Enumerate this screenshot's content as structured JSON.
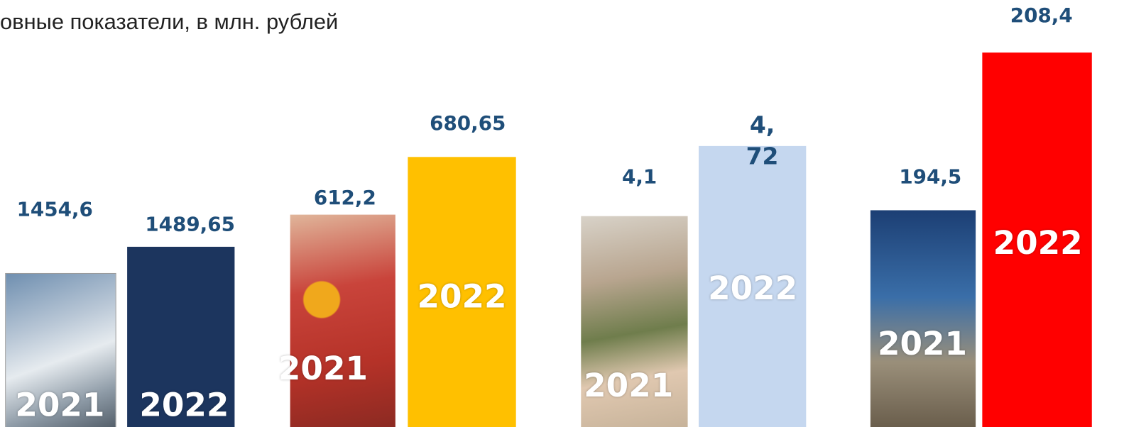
{
  "title": "овные показатели, в млн. рублей",
  "groups": [
    {
      "bars": [
        {
          "year": "2021",
          "value": "1454,6"
        },
        {
          "year": "2022",
          "value": "1489,65"
        }
      ]
    },
    {
      "bars": [
        {
          "year": "2021",
          "value": "612,2"
        },
        {
          "year": "2022",
          "value": "680,65"
        }
      ]
    },
    {
      "bars": [
        {
          "year": "2021",
          "value": "4,1"
        },
        {
          "year": "2022",
          "value": "4,72"
        }
      ]
    },
    {
      "bars": [
        {
          "year": "2021",
          "value": "194,5"
        },
        {
          "year": "2022",
          "value": "208,4"
        }
      ]
    }
  ]
}
